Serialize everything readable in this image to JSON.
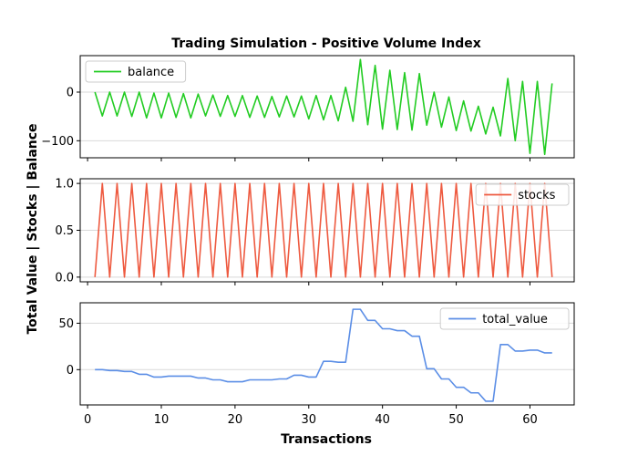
{
  "chart_data": {
    "type": "line",
    "title": "Trading Simulation - Positive Volume Index",
    "xlabel": "Transactions",
    "ylabel": "Total Value | Stocks | Balance",
    "xlim": [
      -1,
      66
    ],
    "x_ticks": [
      0,
      10,
      20,
      30,
      40,
      50,
      60
    ],
    "x": [
      1,
      2,
      3,
      4,
      5,
      6,
      7,
      8,
      9,
      10,
      11,
      12,
      13,
      14,
      15,
      16,
      17,
      18,
      19,
      20,
      21,
      22,
      23,
      24,
      25,
      26,
      27,
      28,
      29,
      30,
      31,
      32,
      33,
      34,
      35,
      36,
      37,
      38,
      39,
      40,
      41,
      42,
      43,
      44,
      45,
      46,
      47,
      48,
      49,
      50,
      51,
      52,
      53,
      54,
      55,
      56,
      57,
      58,
      59,
      60,
      61,
      62,
      63
    ],
    "panels": [
      {
        "series": [
          {
            "name": "balance",
            "color": "#22cc22",
            "values": [
              0,
              -49,
              0,
              -49,
              0,
              -50,
              0,
              -53,
              -2,
              -53,
              -2,
              -52,
              -3,
              -53,
              -4,
              -49,
              -6,
              -50,
              -7,
              -50,
              -7,
              -52,
              -8,
              -52,
              -9,
              -51,
              -8,
              -51,
              -8,
              -55,
              -7,
              -57,
              -7,
              -59,
              10,
              -60,
              67,
              -67,
              55,
              -76,
              45,
              -77,
              40,
              -78,
              38,
              -68,
              0,
              -72,
              -10,
              -79,
              -18,
              -80,
              -29,
              -86,
              -31,
              -90,
              28,
              -100,
              22,
              -126,
              22,
              -128,
              18
            ]
          }
        ],
        "ylim": [
          -135,
          75
        ],
        "y_ticks": [
          0,
          -100
        ],
        "legend": "upper-left"
      },
      {
        "series": [
          {
            "name": "stocks",
            "color": "#ee5a40",
            "values": [
              0,
              1,
              0,
              1,
              0,
              1,
              0,
              1,
              0,
              1,
              0,
              1,
              0,
              1,
              0,
              1,
              0,
              1,
              0,
              1,
              0,
              1,
              0,
              1,
              0,
              1,
              0,
              1,
              0,
              1,
              0,
              1,
              0,
              1,
              0,
              1,
              0,
              1,
              0,
              1,
              0,
              1,
              0,
              1,
              0,
              1,
              0,
              1,
              0,
              1,
              0,
              1,
              0,
              1,
              0,
              1,
              0,
              1,
              0,
              1,
              0,
              1,
              0
            ]
          }
        ],
        "ylim": [
          -0.05,
          1.05
        ],
        "y_ticks": [
          0.0,
          0.5,
          1.0
        ],
        "y_tick_labels": [
          "0.0",
          "0.5",
          "1.0"
        ],
        "legend": "upper-right"
      },
      {
        "series": [
          {
            "name": "total_value",
            "color": "#5b8ee6",
            "values": [
              0,
              0,
              -1,
              -1,
              -2,
              -2,
              -5,
              -5,
              -8,
              -8,
              -7,
              -7,
              -7,
              -7,
              -9,
              -9,
              -11,
              -11,
              -13,
              -13,
              -13,
              -11,
              -11,
              -11,
              -11,
              -10,
              -10,
              -6,
              -6,
              -8,
              -8,
              9,
              9,
              8,
              8,
              65,
              65,
              53,
              53,
              44,
              44,
              42,
              42,
              36,
              36,
              1,
              1,
              -10,
              -10,
              -19,
              -19,
              -25,
              -25,
              -34,
              -34,
              27,
              27,
              20,
              20,
              21,
              21,
              18,
              18
            ]
          }
        ],
        "ylim": [
          -38,
          72
        ],
        "y_ticks": [
          0,
          50
        ],
        "legend": "upper-right"
      }
    ]
  }
}
